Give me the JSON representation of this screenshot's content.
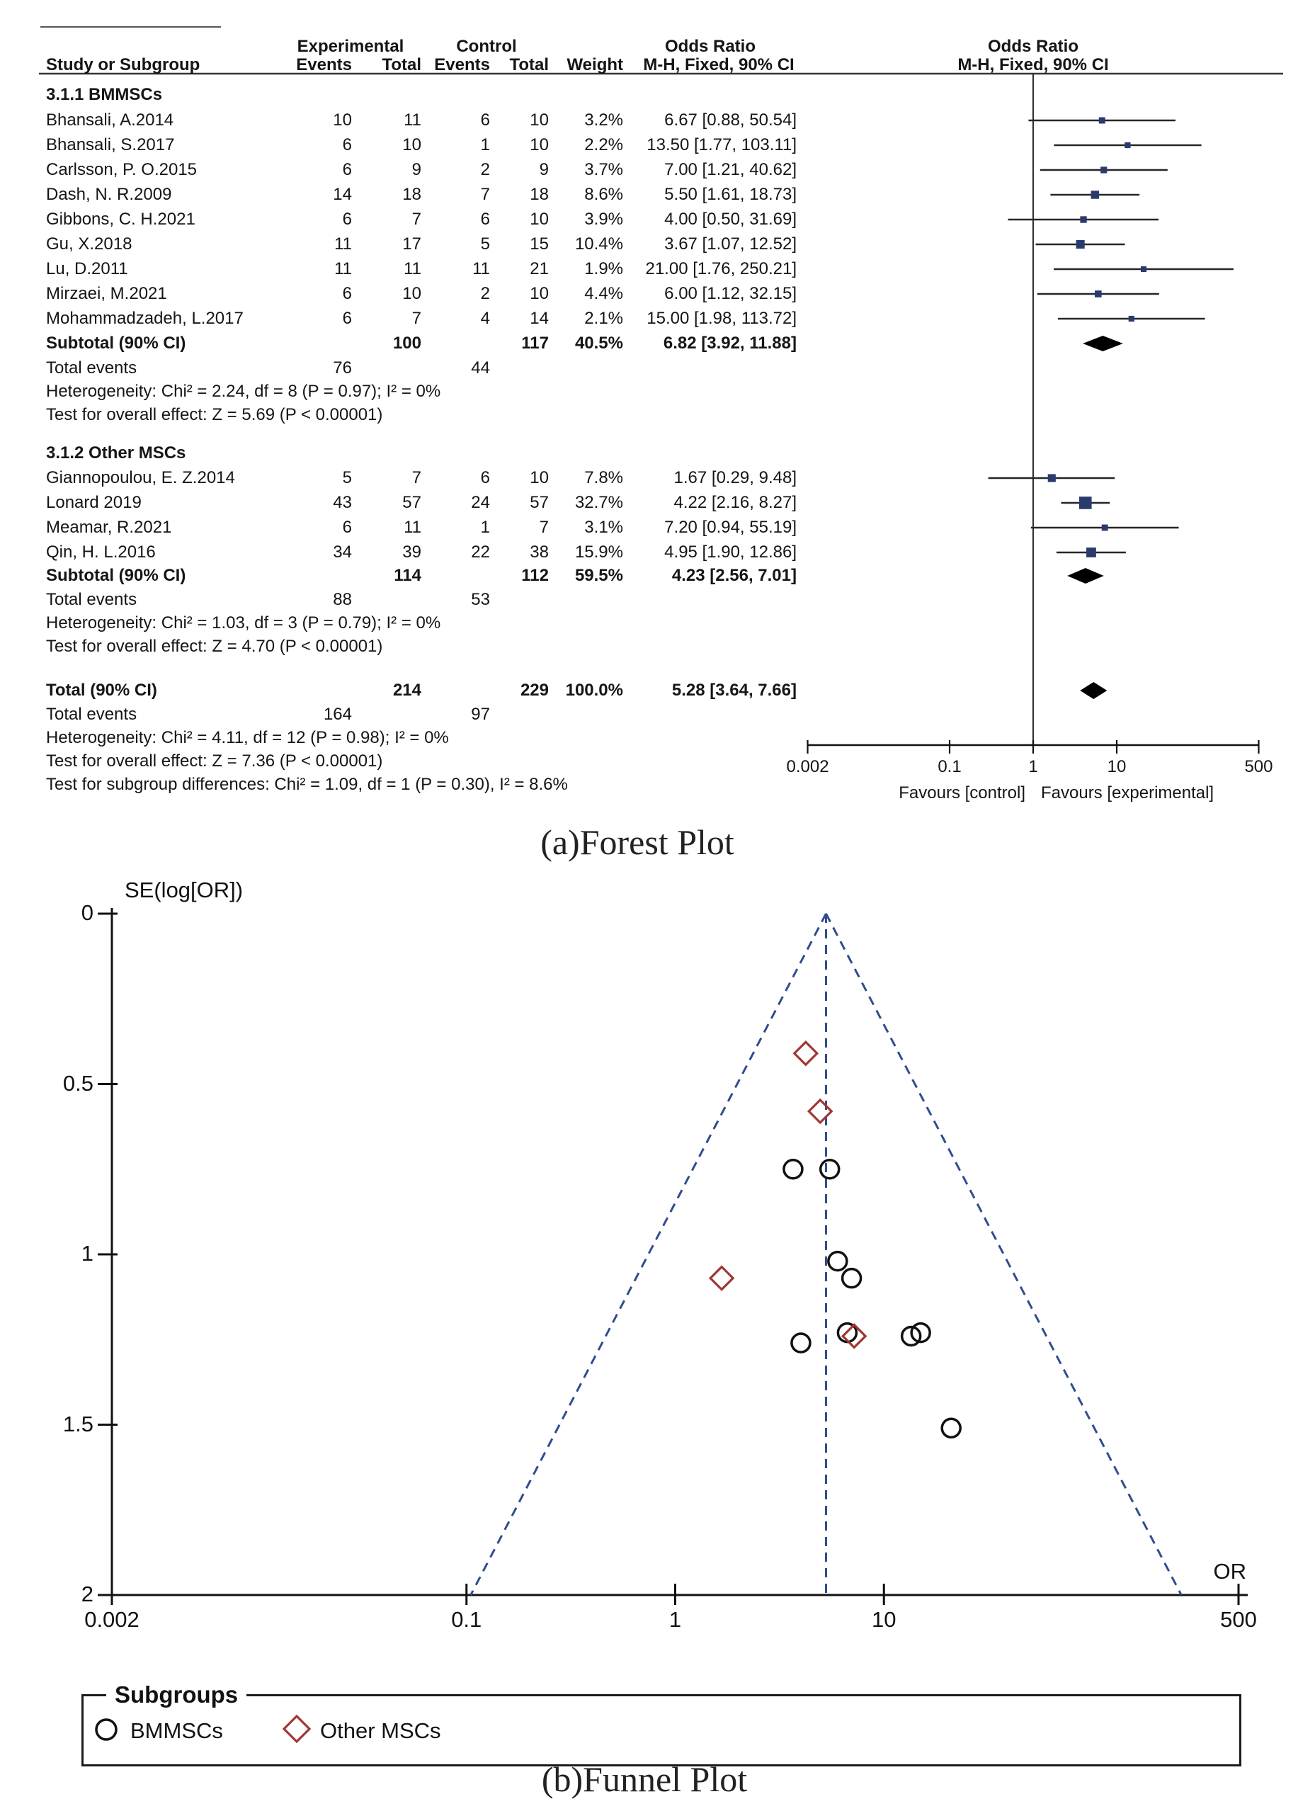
{
  "captions": {
    "a": "(a)Forest Plot",
    "b": "(b)Funnel Plot"
  },
  "colors": {
    "square": "#2b3a6d",
    "ci_line": "#262626",
    "diamond_fill": "#000000",
    "funnel_dash": "#2f4d8f",
    "funnel_circle": "#111111",
    "funnel_diamond": "#a03732"
  },
  "legend": {
    "title": "Subgroups",
    "items": [
      {
        "label": "BMMSCs",
        "marker": "circle"
      },
      {
        "label": "Other MSCs",
        "marker": "diamond"
      }
    ]
  },
  "chart_data": [
    {
      "type": "forest",
      "effect_measure": "Odds Ratio",
      "method": "M-H, Fixed, 90% CI",
      "x_scale": "log",
      "xlim": [
        0.002,
        500
      ],
      "columns": {
        "group_exp": "Experimental",
        "group_ctl": "Control",
        "or_text": "Odds Ratio",
        "or_plot": "Odds Ratio",
        "study": "Study or Subgroup",
        "events_exp": "Events",
        "total_exp": "Total",
        "events_ctl": "Events",
        "total_ctl": "Total",
        "weight": "Weight",
        "mh_text": "M-H, Fixed, 90% CI",
        "mh_plot": "M-H, Fixed, 90% CI"
      },
      "axis": {
        "tick_labels": [
          "0.002",
          "0.1",
          "1",
          "10",
          "500"
        ],
        "tick_values": [
          0.002,
          0.1,
          1,
          10,
          500
        ],
        "favours_left": "Favours [control]",
        "favours_right": "Favours [experimental]"
      },
      "groups": [
        {
          "label": "3.1.1 BMMSCs",
          "studies": [
            {
              "study": "Bhansali, A.2014",
              "events_exp": "10",
              "total_exp": "11",
              "events_ctl": "6",
              "total_ctl": "10",
              "weight": "3.2%",
              "weight_pct": 3.2,
              "or_text": "6.67 [0.88, 50.54]",
              "or": 6.67,
              "ci_low": 0.88,
              "ci_high": 50.54
            },
            {
              "study": "Bhansali, S.2017",
              "events_exp": "6",
              "total_exp": "10",
              "events_ctl": "1",
              "total_ctl": "10",
              "weight": "2.2%",
              "weight_pct": 2.2,
              "or_text": "13.50 [1.77, 103.11]",
              "or": 13.5,
              "ci_low": 1.77,
              "ci_high": 103.11
            },
            {
              "study": "Carlsson, P. O.2015",
              "events_exp": "6",
              "total_exp": "9",
              "events_ctl": "2",
              "total_ctl": "9",
              "weight": "3.7%",
              "weight_pct": 3.7,
              "or_text": "7.00 [1.21, 40.62]",
              "or": 7.0,
              "ci_low": 1.21,
              "ci_high": 40.62
            },
            {
              "study": "Dash, N. R.2009",
              "events_exp": "14",
              "total_exp": "18",
              "events_ctl": "7",
              "total_ctl": "18",
              "weight": "8.6%",
              "weight_pct": 8.6,
              "or_text": "5.50 [1.61, 18.73]",
              "or": 5.5,
              "ci_low": 1.61,
              "ci_high": 18.73
            },
            {
              "study": "Gibbons, C. H.2021",
              "events_exp": "6",
              "total_exp": "7",
              "events_ctl": "6",
              "total_ctl": "10",
              "weight": "3.9%",
              "weight_pct": 3.9,
              "or_text": "4.00 [0.50, 31.69]",
              "or": 4.0,
              "ci_low": 0.5,
              "ci_high": 31.69
            },
            {
              "study": "Gu, X.2018",
              "events_exp": "11",
              "total_exp": "17",
              "events_ctl": "5",
              "total_ctl": "15",
              "weight": "10.4%",
              "weight_pct": 10.4,
              "or_text": "3.67 [1.07, 12.52]",
              "or": 3.67,
              "ci_low": 1.07,
              "ci_high": 12.52
            },
            {
              "study": "Lu, D.2011",
              "events_exp": "11",
              "total_exp": "11",
              "events_ctl": "11",
              "total_ctl": "21",
              "weight": "1.9%",
              "weight_pct": 1.9,
              "or_text": "21.00 [1.76, 250.21]",
              "or": 21.0,
              "ci_low": 1.76,
              "ci_high": 250.21
            },
            {
              "study": "Mirzaei, M.2021",
              "events_exp": "6",
              "total_exp": "10",
              "events_ctl": "2",
              "total_ctl": "10",
              "weight": "4.4%",
              "weight_pct": 4.4,
              "or_text": "6.00 [1.12, 32.15]",
              "or": 6.0,
              "ci_low": 1.12,
              "ci_high": 32.15
            },
            {
              "study": "Mohammadzadeh, L.2017",
              "events_exp": "6",
              "total_exp": "7",
              "events_ctl": "4",
              "total_ctl": "14",
              "weight": "2.1%",
              "weight_pct": 2.1,
              "or_text": "15.00 [1.98, 113.72]",
              "or": 15.0,
              "ci_low": 1.98,
              "ci_high": 113.72
            }
          ],
          "subtotal": {
            "label": "Subtotal (90% CI)",
            "total_exp": "100",
            "total_ctl": "117",
            "weight": "40.5%",
            "or_text": "6.82 [3.92, 11.88]",
            "or": 6.82,
            "ci_low": 3.92,
            "ci_high": 11.88
          },
          "total_events": {
            "label": "Total events",
            "events_exp": "76",
            "events_ctl": "44"
          },
          "heterogeneity": "Heterogeneity: Chi² = 2.24, df = 8 (P = 0.97); I² = 0%",
          "overall_effect": "Test for overall effect: Z = 5.69 (P < 0.00001)"
        },
        {
          "label": "3.1.2 Other MSCs",
          "studies": [
            {
              "study": "Giannopoulou, E. Z.2014",
              "events_exp": "5",
              "total_exp": "7",
              "events_ctl": "6",
              "total_ctl": "10",
              "weight": "7.8%",
              "weight_pct": 7.8,
              "or_text": "1.67 [0.29, 9.48]",
              "or": 1.67,
              "ci_low": 0.29,
              "ci_high": 9.48
            },
            {
              "study": "Lonard 2019",
              "events_exp": "43",
              "total_exp": "57",
              "events_ctl": "24",
              "total_ctl": "57",
              "weight": "32.7%",
              "weight_pct": 32.7,
              "or_text": "4.22 [2.16, 8.27]",
              "or": 4.22,
              "ci_low": 2.16,
              "ci_high": 8.27
            },
            {
              "study": "Meamar, R.2021",
              "events_exp": "6",
              "total_exp": "11",
              "events_ctl": "1",
              "total_ctl": "7",
              "weight": "3.1%",
              "weight_pct": 3.1,
              "or_text": "7.20 [0.94, 55.19]",
              "or": 7.2,
              "ci_low": 0.94,
              "ci_high": 55.19
            },
            {
              "study": "Qin, H. L.2016",
              "events_exp": "34",
              "total_exp": "39",
              "events_ctl": "22",
              "total_ctl": "38",
              "weight": "15.9%",
              "weight_pct": 15.9,
              "or_text": "4.95 [1.90, 12.86]",
              "or": 4.95,
              "ci_low": 1.9,
              "ci_high": 12.86
            }
          ],
          "subtotal": {
            "label": "Subtotal (90% CI)",
            "total_exp": "114",
            "total_ctl": "112",
            "weight": "59.5%",
            "or_text": "4.23 [2.56, 7.01]",
            "or": 4.23,
            "ci_low": 2.56,
            "ci_high": 7.01
          },
          "total_events": {
            "label": "Total events",
            "events_exp": "88",
            "events_ctl": "53"
          },
          "heterogeneity": "Heterogeneity: Chi² = 1.03, df = 3 (P = 0.79); I² = 0%",
          "overall_effect": "Test for overall effect: Z = 4.70 (P < 0.00001)"
        }
      ],
      "total": {
        "label": "Total (90% CI)",
        "total_exp": "214",
        "total_ctl": "229",
        "weight": "100.0%",
        "or_text": "5.28 [3.64, 7.66]",
        "or": 5.28,
        "ci_low": 3.64,
        "ci_high": 7.66
      },
      "total_events": {
        "label": "Total events",
        "events_exp": "164",
        "events_ctl": "97"
      },
      "heterogeneity": "Heterogeneity: Chi² = 4.11, df = 12 (P = 0.98); I² = 0%",
      "overall_effect": "Test for overall effect: Z = 7.36 (P < 0.00001)",
      "subgroup_diff": "Test for subgroup differences: Chi² = 1.09, df = 1 (P = 0.30), I² = 8.6%"
    },
    {
      "type": "scatter",
      "title": "Funnel plot",
      "xlabel": "OR",
      "ylabel": "SE(log[OR])",
      "x_scale": "log",
      "xlim": [
        0.002,
        500
      ],
      "ylim": [
        2,
        0
      ],
      "xticks": {
        "labels": [
          "0.002",
          "0.1",
          "1",
          "10",
          "500"
        ],
        "values": [
          0.002,
          0.1,
          1,
          10,
          500
        ]
      },
      "yticks": {
        "labels": [
          "0",
          "0.5",
          "1",
          "1.5",
          "2"
        ],
        "values": [
          0,
          0.5,
          1,
          1.5,
          2
        ]
      },
      "pooled_or": 5.28,
      "pseudo_ci_z": 1.96,
      "series": [
        {
          "name": "BMMSCs",
          "marker": "circle",
          "points": [
            {
              "or": 6.67,
              "se": 1.23
            },
            {
              "or": 13.5,
              "se": 1.24
            },
            {
              "or": 7.0,
              "se": 1.07
            },
            {
              "or": 5.5,
              "se": 0.75
            },
            {
              "or": 4.0,
              "se": 1.26
            },
            {
              "or": 3.67,
              "se": 0.75
            },
            {
              "or": 21.0,
              "se": 1.51
            },
            {
              "or": 6.0,
              "se": 1.02
            },
            {
              "or": 15.0,
              "se": 1.23
            }
          ]
        },
        {
          "name": "Other MSCs",
          "marker": "diamond",
          "points": [
            {
              "or": 1.67,
              "se": 1.07
            },
            {
              "or": 4.22,
              "se": 0.41
            },
            {
              "or": 7.2,
              "se": 1.24
            },
            {
              "or": 4.95,
              "se": 0.58
            }
          ]
        }
      ]
    }
  ]
}
